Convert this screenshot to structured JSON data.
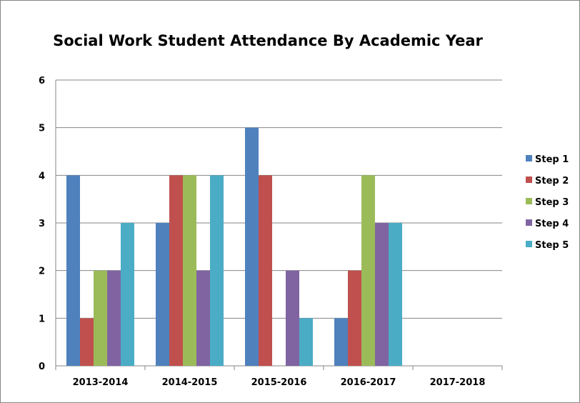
{
  "chart_data": {
    "type": "bar",
    "title": "Social Work Student Attendance By Academic Year",
    "xlabel": "",
    "ylabel": "",
    "categories": [
      "2013-2014",
      "2014-2015",
      "2015-2016",
      "2016-2017",
      "2017-2018"
    ],
    "series": [
      {
        "name": "Step 1",
        "color": "#4F81BD",
        "values": [
          4,
          3,
          5,
          1,
          null
        ]
      },
      {
        "name": "Step 2",
        "color": "#C0504D",
        "values": [
          1,
          4,
          4,
          2,
          null
        ]
      },
      {
        "name": "Step 3",
        "color": "#9BBB59",
        "values": [
          2,
          4,
          null,
          4,
          null
        ]
      },
      {
        "name": "Step 4",
        "color": "#8064A2",
        "values": [
          2,
          2,
          2,
          3,
          null
        ]
      },
      {
        "name": "Step 5",
        "color": "#4BACC6",
        "values": [
          3,
          4,
          1,
          3,
          null
        ]
      }
    ],
    "ylim": [
      0,
      6
    ],
    "yticks": [
      0,
      1,
      2,
      3,
      4,
      5,
      6
    ],
    "grid": true,
    "legend_position": "right"
  }
}
